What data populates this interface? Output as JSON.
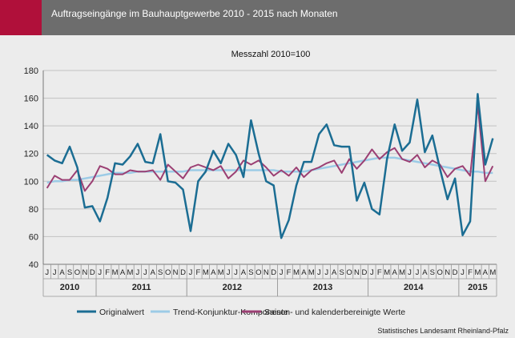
{
  "header": {
    "title": "Auftragseingänge im Bauhauptgewerbe 2010 - 2015 nach Monaten"
  },
  "source": "Statistisches Landesamt Rheinland-Pfalz",
  "colors": {
    "header_bg": "#6d6d6d",
    "accent": "#b0103a",
    "original": "#1b6d93",
    "trend": "#9ccbe6",
    "adjusted": "#9b3f73"
  },
  "chart_data": {
    "type": "line",
    "title": "Messzahl 2010=100",
    "ylim": [
      40,
      180
    ],
    "yticks": [
      40,
      60,
      80,
      100,
      120,
      140,
      160,
      180
    ],
    "grid": true,
    "legend_position": "bottom",
    "month_labels": [
      "J",
      "J",
      "A",
      "S",
      "O",
      "N",
      "D",
      "J",
      "F",
      "M",
      "A",
      "M",
      "J",
      "J",
      "A",
      "S",
      "O",
      "N",
      "D",
      "J",
      "F",
      "M",
      "A",
      "M",
      "J",
      "J",
      "A",
      "S",
      "O",
      "N",
      "D",
      "J",
      "F",
      "M",
      "A",
      "M",
      "J",
      "J",
      "A",
      "S",
      "O",
      "N",
      "D",
      "J",
      "F",
      "M",
      "A",
      "M",
      "J",
      "J",
      "A",
      "S",
      "O",
      "N",
      "D",
      "J",
      "F",
      "M",
      "A",
      "M"
    ],
    "years": [
      {
        "label": "2010",
        "start": 0,
        "end": 6
      },
      {
        "label": "2011",
        "start": 7,
        "end": 18
      },
      {
        "label": "2012",
        "start": 19,
        "end": 30
      },
      {
        "label": "2013",
        "start": 31,
        "end": 42
      },
      {
        "label": "2014",
        "start": 43,
        "end": 54
      },
      {
        "label": "2015",
        "start": 55,
        "end": 59
      }
    ],
    "series": [
      {
        "name": "Originalwert",
        "color": "#1b6d93",
        "width": 2.5,
        "values": [
          119,
          115,
          113,
          125,
          110,
          81,
          82,
          71,
          88,
          113,
          112,
          118,
          127,
          114,
          113,
          134,
          100,
          99,
          94,
          64,
          100,
          107,
          122,
          113,
          127,
          119,
          103,
          144,
          120,
          100,
          97,
          59,
          72,
          97,
          114,
          114,
          134,
          141,
          126,
          125,
          125,
          86,
          99,
          80,
          76,
          116,
          141,
          122,
          128,
          159,
          121,
          133,
          109,
          87,
          102,
          61,
          71,
          163,
          112,
          131
        ]
      },
      {
        "name": "Trend-Konjunktur-Komponente",
        "color": "#9ccbe6",
        "width": 2.5,
        "values": [
          99,
          100,
          100,
          101,
          101,
          102,
          103,
          104,
          105,
          106,
          106,
          106,
          107,
          107,
          107,
          107,
          107,
          107,
          107,
          108,
          108,
          108,
          108,
          108,
          108,
          108,
          108,
          108,
          108,
          108,
          108,
          107,
          107,
          107,
          107,
          108,
          109,
          110,
          111,
          112,
          113,
          114,
          115,
          116,
          117,
          117,
          117,
          116,
          115,
          114,
          113,
          112,
          111,
          110,
          109,
          108,
          107,
          107,
          106,
          106
        ]
      },
      {
        "name": "Saison- und kalenderbereinigte Werte",
        "color": "#9b3f73",
        "width": 2,
        "values": [
          95,
          104,
          101,
          101,
          108,
          93,
          100,
          111,
          109,
          105,
          105,
          108,
          107,
          107,
          108,
          101,
          112,
          107,
          102,
          110,
          112,
          110,
          108,
          111,
          102,
          107,
          115,
          112,
          115,
          110,
          104,
          108,
          104,
          110,
          103,
          108,
          110,
          113,
          115,
          106,
          116,
          109,
          115,
          123,
          116,
          121,
          124,
          116,
          114,
          119,
          110,
          115,
          112,
          103,
          109,
          111,
          104,
          155,
          100,
          111
        ]
      }
    ]
  }
}
